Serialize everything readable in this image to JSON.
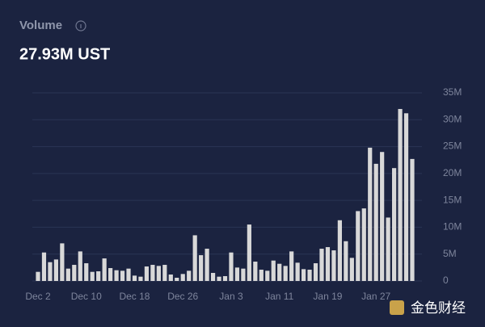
{
  "chart_data": {
    "type": "bar",
    "title": "Volume",
    "subtitle": "27.93M UST",
    "watermark": "金色财经",
    "categories": [
      "Dec 2",
      null,
      null,
      null,
      null,
      null,
      null,
      null,
      "Dec 10",
      null,
      null,
      null,
      null,
      null,
      null,
      null,
      "Dec 18",
      null,
      null,
      null,
      null,
      null,
      null,
      null,
      "Dec 26",
      null,
      null,
      null,
      null,
      null,
      null,
      null,
      "Jan 3",
      null,
      null,
      null,
      null,
      null,
      null,
      null,
      "Jan 11",
      null,
      null,
      null,
      null,
      null,
      null,
      null,
      "Jan 19",
      null,
      null,
      null,
      null,
      null,
      null,
      null,
      "Jan 27",
      null,
      null,
      null,
      null,
      null,
      null
    ],
    "values": [
      1.7,
      5.3,
      3.5,
      4.0,
      7.0,
      2.3,
      3.0,
      5.5,
      3.3,
      1.7,
      1.8,
      4.2,
      2.4,
      2.0,
      1.9,
      2.3,
      1.0,
      0.8,
      2.7,
      3.0,
      2.8,
      3.0,
      1.2,
      0.6,
      1.3,
      1.9,
      8.5,
      4.8,
      6.0,
      1.5,
      0.8,
      0.9,
      5.3,
      2.5,
      2.3,
      10.5,
      3.6,
      2.1,
      1.9,
      3.8,
      3.2,
      2.8,
      5.5,
      3.4,
      2.2,
      2.1,
      3.3,
      6.0,
      6.3,
      5.7,
      11.3,
      7.4,
      4.3,
      13.0,
      13.5,
      24.8,
      21.8,
      24.0,
      11.8,
      21.0,
      32.0,
      31.2,
      22.7
    ],
    "color": "#d8d8d8",
    "ylim": [
      0,
      35
    ],
    "yticks": [
      0,
      {
        "value": 5,
        "label": "5M"
      },
      {
        "value": 10,
        "label": "10M"
      },
      {
        "value": 15,
        "label": "15M"
      },
      {
        "value": 20,
        "label": "20M"
      },
      {
        "value": 25,
        "label": "25M"
      },
      {
        "value": 30,
        "label": "30M"
      },
      {
        "value": 35,
        "label": "35M"
      }
    ],
    "grid": true
  }
}
